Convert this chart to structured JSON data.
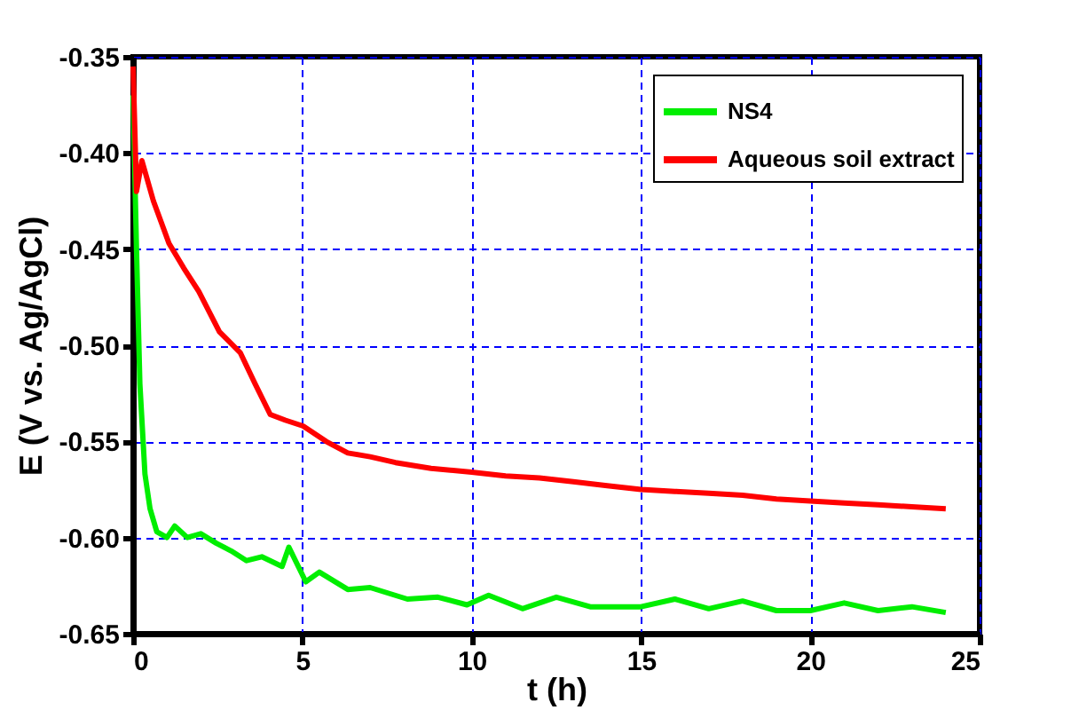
{
  "chart_data": {
    "type": "line",
    "xlabel": "t (h)",
    "ylabel": "E (V vs. Ag/AgCl)",
    "xlim": [
      0,
      25
    ],
    "xticks": [
      0,
      5,
      10,
      15,
      20,
      25
    ],
    "ylim": [
      -0.65,
      -0.35
    ],
    "yticks": [
      -0.65,
      {
        "value": -0.6,
        "label": "-0.60"
      },
      -0.55,
      {
        "value": -0.5,
        "label": "-0.50"
      },
      -0.45,
      {
        "value": -0.4,
        "label": "-0.40"
      },
      -0.35
    ],
    "grid": true,
    "legend": "top right",
    "line_style": "solid",
    "marker": "none",
    "series": [
      {
        "name": "NS4",
        "color": "#00ee00",
        "x": [
          0,
          0.1,
          0.2,
          0.35,
          0.5,
          0.7,
          1.0,
          1.23,
          1.6,
          2.0,
          2.46,
          2.9,
          3.35,
          3.8,
          4.4,
          4.6,
          5.1,
          5.5,
          6.34,
          7.0,
          8.1,
          9.0,
          9.86,
          10.5,
          11.5,
          12.5,
          13.5,
          15,
          16,
          17,
          18,
          19,
          20,
          21,
          22,
          23,
          24
        ],
        "values": [
          -0.37,
          -0.45,
          -0.52,
          -0.567,
          -0.585,
          -0.597,
          -0.6,
          -0.594,
          -0.6,
          -0.598,
          -0.603,
          -0.607,
          -0.612,
          -0.61,
          -0.615,
          -0.605,
          -0.623,
          -0.618,
          -0.627,
          -0.626,
          -0.632,
          -0.631,
          -0.635,
          -0.63,
          -0.637,
          -0.631,
          -0.636,
          -0.636,
          -0.632,
          -0.637,
          -0.633,
          -0.638,
          -0.638,
          -0.634,
          -0.638,
          -0.636,
          -0.639
        ]
      },
      {
        "name": "Aqueous soil extract",
        "color": "#ff0000",
        "x": [
          0,
          0.1,
          0.26,
          0.6,
          1.06,
          1.5,
          1.94,
          2.55,
          3.17,
          3.6,
          4.05,
          4.5,
          5.02,
          5.7,
          6.34,
          7.0,
          7.75,
          8.8,
          10,
          11,
          12,
          13,
          14,
          15,
          16,
          17,
          18,
          19,
          20,
          21,
          22,
          23,
          24
        ],
        "values": [
          -0.355,
          -0.42,
          -0.404,
          -0.425,
          -0.447,
          -0.46,
          -0.472,
          -0.493,
          -0.504,
          -0.52,
          -0.536,
          -0.539,
          -0.542,
          -0.55,
          -0.556,
          -0.558,
          -0.561,
          -0.564,
          -0.566,
          -0.568,
          -0.569,
          -0.571,
          -0.573,
          -0.575,
          -0.576,
          -0.577,
          -0.578,
          -0.58,
          -0.581,
          -0.582,
          -0.583,
          -0.584,
          -0.585
        ]
      }
    ]
  }
}
